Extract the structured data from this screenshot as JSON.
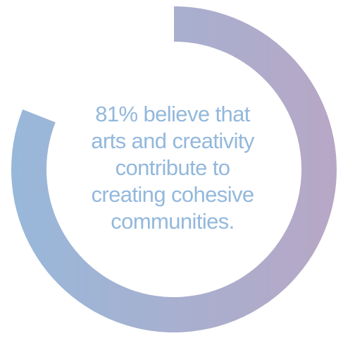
{
  "chart_data": {
    "type": "pie",
    "variant": "donut",
    "title": "",
    "values": [
      81,
      19
    ],
    "categories": [
      "",
      ""
    ],
    "colors": {
      "gradient_start": "#98b8da",
      "gradient_end": "#b7a7c5",
      "track": "#ffffff"
    }
  },
  "statement": {
    "lines": [
      "81% believe that",
      "arts and creativity",
      "contribute to",
      "creating cohesive",
      "communities."
    ],
    "text_color": "#93b8dc"
  }
}
